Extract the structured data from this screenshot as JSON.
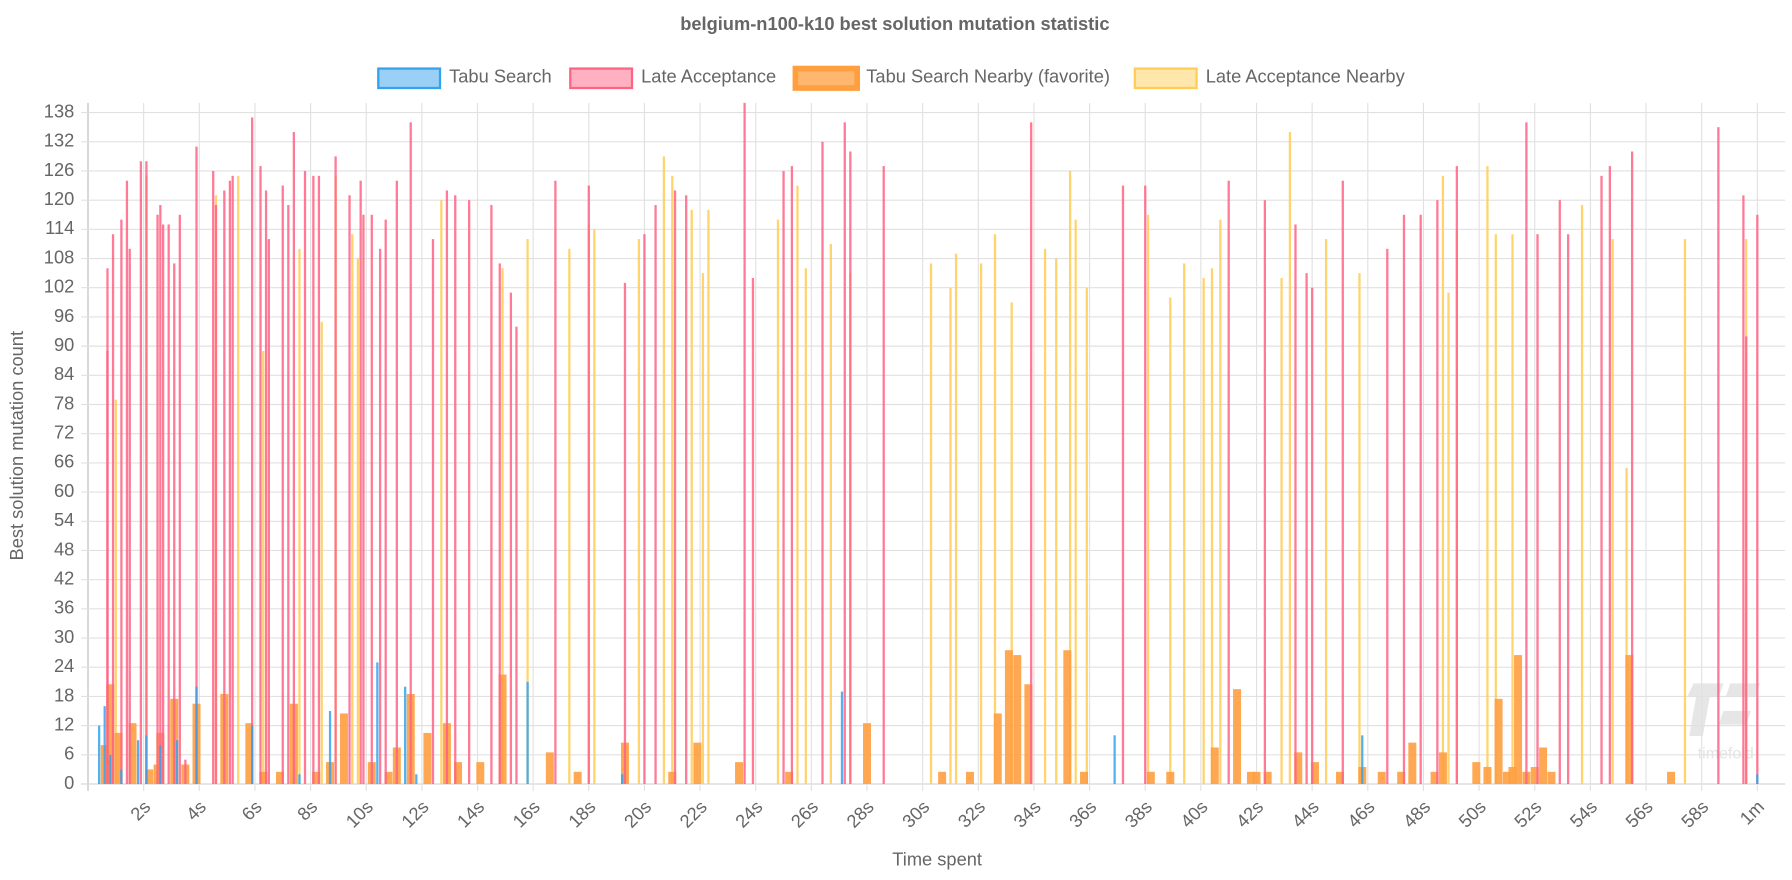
{
  "chart_data": {
    "type": "bar",
    "title": "belgium-n100-k10 best solution mutation statistic",
    "x_label": "Time spent",
    "y_label": "Best solution mutation count",
    "watermark": "timefold",
    "xlim": [
      0,
      61
    ],
    "ylim": [
      0,
      140
    ],
    "grid": true,
    "legend": "top",
    "xticks": [
      {
        "value": 2,
        "label": "2s"
      },
      {
        "value": 4,
        "label": "4s"
      },
      {
        "value": 6,
        "label": "6s"
      },
      {
        "value": 8,
        "label": "8s"
      },
      {
        "value": 10,
        "label": "10s"
      },
      {
        "value": 12,
        "label": "12s"
      },
      {
        "value": 14,
        "label": "14s"
      },
      {
        "value": 16,
        "label": "16s"
      },
      {
        "value": 18,
        "label": "18s"
      },
      {
        "value": 20,
        "label": "20s"
      },
      {
        "value": 22,
        "label": "22s"
      },
      {
        "value": 24,
        "label": "24s"
      },
      {
        "value": 26,
        "label": "26s"
      },
      {
        "value": 28,
        "label": "28s"
      },
      {
        "value": 30,
        "label": "30s"
      },
      {
        "value": 32,
        "label": "32s"
      },
      {
        "value": 34,
        "label": "34s"
      },
      {
        "value": 36,
        "label": "36s"
      },
      {
        "value": 38,
        "label": "38s"
      },
      {
        "value": 40,
        "label": "40s"
      },
      {
        "value": 42,
        "label": "42s"
      },
      {
        "value": 44,
        "label": "44s"
      },
      {
        "value": 46,
        "label": "46s"
      },
      {
        "value": 48,
        "label": "48s"
      },
      {
        "value": 50,
        "label": "50s"
      },
      {
        "value": 52,
        "label": "52s"
      },
      {
        "value": 54,
        "label": "54s"
      },
      {
        "value": 56,
        "label": "56s"
      },
      {
        "value": 58,
        "label": "58s"
      },
      {
        "value": 60,
        "label": "1m"
      }
    ],
    "yticks": [
      0,
      6,
      12,
      18,
      24,
      30,
      36,
      42,
      48,
      54,
      60,
      66,
      72,
      78,
      84,
      90,
      96,
      102,
      108,
      114,
      120,
      126,
      132,
      138
    ],
    "series": [
      {
        "name": "Tabu Search",
        "color": "#36a2eb",
        "x": [
          0.4,
          0.6,
          0.8,
          1.2,
          1.8,
          2.1,
          2.6,
          3.2,
          3.9,
          5.9,
          7.6,
          8.7,
          10.4,
          11.4,
          11.8,
          15.8,
          19.2,
          27.1,
          36.9,
          45.8,
          60.0
        ],
        "values": [
          12,
          16,
          6,
          3,
          9,
          10,
          8,
          9,
          20,
          12,
          2,
          15,
          25,
          20,
          2,
          21,
          2,
          19,
          10,
          10,
          2
        ]
      },
      {
        "name": "Late Acceptance",
        "color": "#ff6384",
        "x": [
          0.7,
          0.7,
          0.9,
          1.2,
          1.4,
          1.5,
          1.9,
          2.1,
          2.5,
          2.6,
          2.7,
          2.9,
          3.1,
          3.3,
          3.5,
          3.9,
          4.5,
          4.6,
          4.9,
          5.1,
          5.2,
          5.9,
          6.2,
          6.4,
          6.5,
          7.0,
          7.2,
          7.4,
          7.8,
          8.1,
          8.3,
          8.9,
          9.4,
          9.8,
          9.9,
          10.2,
          10.5,
          10.7,
          11.1,
          11.6,
          12.4,
          12.9,
          13.2,
          13.7,
          14.5,
          14.8,
          15.2,
          15.4,
          16.8,
          18.0,
          19.3,
          20.0,
          20.4,
          21.1,
          21.5,
          23.6,
          23.9,
          25.0,
          25.3,
          26.4,
          27.2,
          27.4,
          28.6,
          33.9,
          37.2,
          38.0,
          41.0,
          42.3,
          43.4,
          43.8,
          44.0,
          45.1,
          46.7,
          47.3,
          47.9,
          48.5,
          49.2,
          51.7,
          52.1,
          52.9,
          53.2,
          54.4,
          54.7,
          55.5,
          58.6,
          59.5,
          59.6,
          60.0
        ],
        "values": [
          106,
          89,
          113,
          116,
          124,
          110,
          128,
          128,
          117,
          119,
          115,
          115,
          107,
          117,
          5,
          131,
          126,
          119,
          122,
          124,
          125,
          137,
          127,
          122,
          112,
          123,
          119,
          134,
          126,
          125,
          125,
          129,
          121,
          124,
          117,
          117,
          110,
          116,
          124,
          136,
          112,
          122,
          121,
          120,
          119,
          107,
          101,
          94,
          124,
          123,
          103,
          113,
          119,
          122,
          121,
          140,
          104,
          126,
          127,
          132,
          136,
          130,
          127,
          136,
          123,
          123,
          124,
          120,
          115,
          105,
          102,
          124,
          110,
          117,
          117,
          120,
          127,
          136,
          113,
          120,
          113,
          125,
          127,
          130,
          135,
          121,
          92,
          117
        ]
      },
      {
        "name": "Tabu Search Nearby (favorite)",
        "color": "#ff9f40",
        "x": [
          0.6,
          0.8,
          1.1,
          1.6,
          2.2,
          2.5,
          2.6,
          3.1,
          3.5,
          3.9,
          4.9,
          5.8,
          6.3,
          6.9,
          7.4,
          8.2,
          8.7,
          9.2,
          10.2,
          10.8,
          11.1,
          11.6,
          12.2,
          12.9,
          13.3,
          14.1,
          14.9,
          16.6,
          17.6,
          19.3,
          21.0,
          21.9,
          23.4,
          25.2,
          28.0,
          30.7,
          31.7,
          32.7,
          33.1,
          33.4,
          33.8,
          35.2,
          35.8,
          38.2,
          38.9,
          40.5,
          41.3,
          41.8,
          42.0,
          42.4,
          43.5,
          44.1,
          45.0,
          45.8,
          46.5,
          47.2,
          47.6,
          48.4,
          48.7,
          49.9,
          50.3,
          50.7,
          51.0,
          51.2,
          51.4,
          51.7,
          52.0,
          52.3,
          52.6,
          55.4,
          56.9
        ],
        "values": [
          8,
          20.5,
          10.5,
          12.5,
          3,
          4,
          10.5,
          17.5,
          4,
          16.5,
          18.5,
          12.5,
          2.5,
          2.5,
          16.5,
          2.5,
          4.5,
          14.5,
          4.5,
          2.5,
          7.5,
          18.5,
          10.5,
          12.5,
          4.5,
          4.5,
          22.5,
          6.5,
          2.5,
          8.5,
          2.5,
          8.5,
          4.5,
          2.5,
          12.5,
          2.5,
          2.5,
          14.5,
          27.5,
          26.5,
          20.5,
          27.5,
          2.5,
          2.5,
          2.5,
          7.5,
          19.5,
          2.5,
          2.5,
          2.5,
          6.5,
          4.5,
          2.5,
          3.5,
          2.5,
          2.5,
          8.5,
          2.5,
          6.5,
          4.5,
          3.5,
          17.5,
          2.5,
          3.5,
          26.5,
          2.5,
          3.5,
          7.5,
          2.5,
          26.5,
          2.5
        ]
      },
      {
        "name": "Late Acceptance Nearby",
        "color": "#ffcd56",
        "x": [
          1.0,
          2.1,
          4.6,
          5.4,
          6.3,
          7.6,
          8.4,
          8.9,
          9.5,
          9.7,
          12.7,
          14.9,
          15.8,
          17.3,
          18.0,
          18.2,
          19.8,
          20.7,
          21.0,
          21.7,
          22.1,
          22.3,
          24.8,
          25.5,
          25.8,
          26.7,
          27.4,
          30.3,
          31.0,
          31.2,
          32.1,
          32.6,
          33.2,
          34.4,
          34.8,
          35.3,
          35.5,
          35.9,
          38.1,
          38.9,
          39.4,
          40.1,
          40.4,
          40.7,
          42.9,
          43.2,
          44.5,
          45.7,
          48.7,
          48.9,
          49.2,
          50.3,
          50.6,
          51.2,
          53.7,
          54.8,
          55.3,
          57.4,
          59.6
        ],
        "values": [
          79,
          125,
          121,
          125,
          89,
          110,
          95,
          125,
          113,
          108,
          120,
          106,
          112,
          110,
          115,
          114,
          112,
          129,
          125,
          118,
          105,
          118,
          116,
          123,
          106,
          111,
          105,
          107,
          102,
          109,
          107,
          113,
          99,
          110,
          108,
          126,
          116,
          102,
          117,
          100,
          107,
          104,
          106,
          116,
          104,
          134,
          112,
          105,
          125,
          101,
          114,
          127,
          113,
          113,
          119,
          112,
          65,
          112,
          112
        ]
      }
    ]
  }
}
